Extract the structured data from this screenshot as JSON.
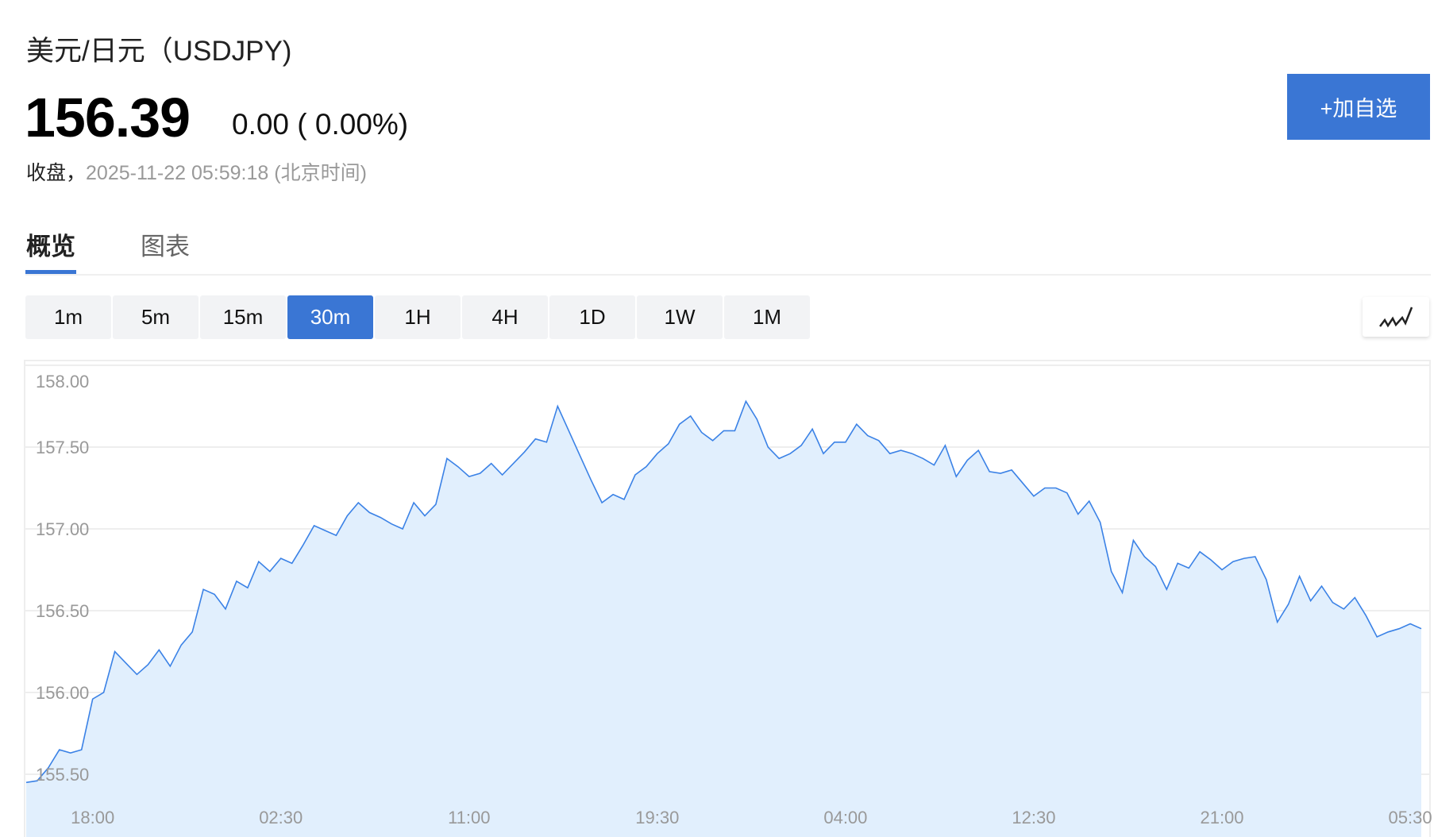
{
  "header": {
    "title": "美元/日元（USDJPY)",
    "price": "156.39",
    "change": "0.00 ( 0.00%)",
    "status_label": "收盘，",
    "timestamp": "2025-11-22 05:59:18 (北京时间)",
    "watchlist_button": "+加自选"
  },
  "tabs": [
    {
      "label": "概览",
      "active": true
    },
    {
      "label": "图表",
      "active": false
    }
  ],
  "periods": [
    {
      "label": "1m"
    },
    {
      "label": "5m"
    },
    {
      "label": "15m"
    },
    {
      "label": "30m",
      "active": true
    },
    {
      "label": "1H"
    },
    {
      "label": "4H"
    },
    {
      "label": "1D"
    },
    {
      "label": "1W"
    },
    {
      "label": "1M"
    }
  ],
  "chart_type_icon": "line-chart-icon",
  "colors": {
    "accent": "#3a76d4",
    "line": "#3b82e6",
    "fill": "#e1effd",
    "grid": "#eeeeee",
    "axis_text": "#999999"
  },
  "chart_data": {
    "type": "area",
    "grid": true,
    "ylim": [
      155.35,
      158.0
    ],
    "yticks": [
      "158.00",
      "157.50",
      "157.00",
      "156.50",
      "156.00",
      "155.50"
    ],
    "xticks": [
      "18:00",
      "02:30",
      "11:00",
      "19:30",
      "04:00",
      "12:30",
      "21:00",
      "05:30"
    ],
    "x": [
      "15:00",
      "15:30",
      "16:00",
      "16:30",
      "17:00",
      "17:30",
      "18:00",
      "18:30",
      "19:00",
      "19:30",
      "20:00",
      "20:30",
      "21:00",
      "21:30",
      "22:00",
      "22:30",
      "23:00",
      "23:30",
      "00:00",
      "00:30",
      "01:00",
      "01:30",
      "02:00",
      "02:30",
      "03:00",
      "03:30",
      "04:00",
      "04:30",
      "05:00",
      "05:30",
      "06:00",
      "06:30",
      "07:00",
      "07:30",
      "08:00",
      "08:30",
      "09:00",
      "09:30",
      "10:00",
      "10:30",
      "11:00",
      "11:30",
      "12:00",
      "12:30",
      "13:00",
      "13:30",
      "14:00",
      "14:30",
      "15:00",
      "15:30",
      "16:00",
      "16:30",
      "17:00",
      "17:30",
      "18:00",
      "18:30",
      "19:00",
      "19:30",
      "20:00",
      "20:30",
      "21:00",
      "21:30",
      "22:00",
      "22:30",
      "23:00",
      "23:30",
      "00:00",
      "00:30",
      "01:00",
      "01:30",
      "02:00",
      "02:30",
      "03:00",
      "03:30",
      "04:00",
      "04:30",
      "05:00",
      "05:30",
      "06:00",
      "06:30",
      "07:00",
      "07:30",
      "08:00",
      "08:30",
      "09:00",
      "09:30",
      "10:00",
      "10:30",
      "11:00",
      "11:30",
      "12:00",
      "12:30",
      "13:00",
      "13:30",
      "14:00",
      "14:30",
      "15:00",
      "15:30",
      "16:00",
      "16:30",
      "17:00",
      "17:30",
      "18:00",
      "18:30",
      "19:00",
      "19:30",
      "20:00",
      "20:30",
      "21:00",
      "21:30",
      "22:00",
      "22:30",
      "23:00",
      "23:30",
      "00:00",
      "00:30",
      "01:00",
      "01:30",
      "02:00",
      "02:30",
      "03:00",
      "03:30",
      "04:00",
      "04:30",
      "05:00",
      "05:30",
      "06:00"
    ],
    "values": [
      155.45,
      155.46,
      155.54,
      155.65,
      155.63,
      155.65,
      155.96,
      156.0,
      156.25,
      156.18,
      156.11,
      156.17,
      156.26,
      156.16,
      156.29,
      156.37,
      156.63,
      156.6,
      156.51,
      156.68,
      156.64,
      156.8,
      156.74,
      156.82,
      156.79,
      156.9,
      157.02,
      156.99,
      156.96,
      157.08,
      157.16,
      157.1,
      157.07,
      157.03,
      157.0,
      157.16,
      157.08,
      157.15,
      157.43,
      157.38,
      157.32,
      157.34,
      157.4,
      157.33,
      157.4,
      157.47,
      157.55,
      157.53,
      157.75,
      157.6,
      157.45,
      157.3,
      157.16,
      157.21,
      157.18,
      157.33,
      157.38,
      157.46,
      157.52,
      157.64,
      157.69,
      157.59,
      157.54,
      157.6,
      157.6,
      157.78,
      157.67,
      157.5,
      157.43,
      157.46,
      157.51,
      157.61,
      157.46,
      157.53,
      157.53,
      157.64,
      157.57,
      157.54,
      157.46,
      157.48,
      157.46,
      157.43,
      157.39,
      157.51,
      157.32,
      157.42,
      157.48,
      157.35,
      157.34,
      157.36,
      157.28,
      157.2,
      157.25,
      157.25,
      157.22,
      157.09,
      157.17,
      157.04,
      156.74,
      156.61,
      156.93,
      156.83,
      156.77,
      156.63,
      156.79,
      156.76,
      156.86,
      156.81,
      156.75,
      156.8,
      156.82,
      156.83,
      156.69,
      156.43,
      156.54,
      156.71,
      156.56,
      156.65,
      156.55,
      156.51,
      156.58,
      156.47,
      156.34,
      156.37,
      156.39,
      156.42,
      156.39
    ]
  }
}
